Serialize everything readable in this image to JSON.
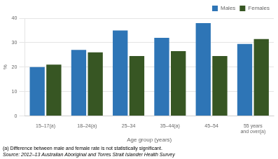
{
  "chart_data": {
    "type": "bar",
    "categories": [
      "15–17(a)",
      "18–24(a)",
      "25–34",
      "35–44(a)",
      "45–54",
      "55 years\nand over(a)"
    ],
    "series": [
      {
        "name": "Males",
        "color": "#2E75B6",
        "values": [
          20,
          27,
          35,
          32,
          38,
          29.5
        ]
      },
      {
        "name": "Females",
        "color": "#375623",
        "values": [
          21,
          26,
          24.5,
          26.5,
          24.5,
          31.5
        ]
      }
    ],
    "xlabel": "Age group (years)",
    "ylabel": "%",
    "ylim": [
      0,
      40
    ],
    "yticks": [
      0,
      10,
      20,
      30,
      40
    ],
    "grid": true,
    "legend": "upper right",
    "annotations": [
      "(a) Difference between male and female rate is not statistically significant.",
      "Source: 2012–13 Australian Aboriginal and Torres Strait Islander Health Survey"
    ]
  }
}
